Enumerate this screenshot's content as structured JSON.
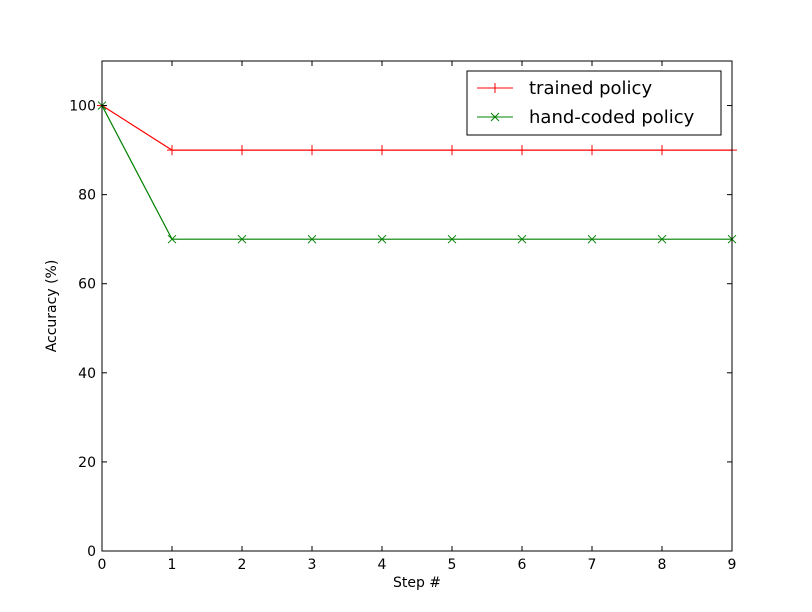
{
  "chart_data": {
    "type": "line",
    "title": "",
    "xlabel": "Step #",
    "ylabel": "Accuracy (%)",
    "xlim": [
      0,
      9
    ],
    "ylim": [
      0,
      110
    ],
    "x": [
      0,
      1,
      2,
      3,
      4,
      5,
      6,
      7,
      8,
      9
    ],
    "xticks": [
      "0",
      "1",
      "2",
      "3",
      "4",
      "5",
      "6",
      "7",
      "8",
      "9"
    ],
    "yticks": [
      0,
      20,
      40,
      60,
      80,
      100
    ],
    "grid": false,
    "legend_position": "top-right",
    "series": [
      {
        "name": "trained policy",
        "color": "#ff0000",
        "marker": "plus",
        "values": [
          100,
          90,
          90,
          90,
          90,
          90,
          90,
          90,
          90,
          90
        ]
      },
      {
        "name": "hand-coded policy",
        "color": "#008000",
        "marker": "x",
        "values": [
          100,
          70,
          70,
          70,
          70,
          70,
          70,
          70,
          70,
          70
        ]
      }
    ]
  }
}
